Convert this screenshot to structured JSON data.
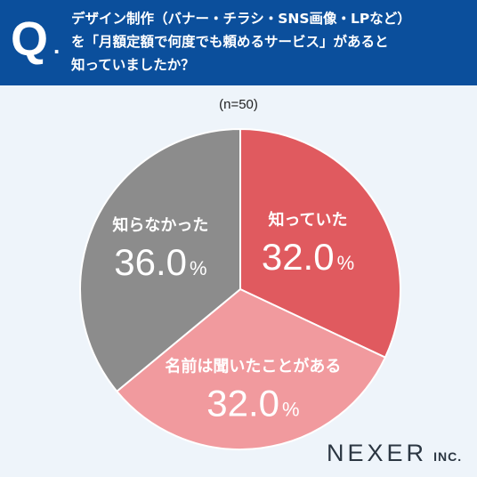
{
  "header": {
    "q_mark": "Q",
    "q_dot": ".",
    "question": "デザイン制作（バナー・チラシ・SNS画像・LPなど）\nを「月額定額で何度でも頼めるサービス」があると\n知っていましたか？",
    "background_color": "#0b4f9c"
  },
  "sample": "(n=50)",
  "chart_data": {
    "type": "pie",
    "title": "",
    "slices": [
      {
        "label": "知っていた",
        "value": 32.0,
        "display": "32.0",
        "color": "#e05a5f"
      },
      {
        "label": "名前は聞いたことがある",
        "value": 32.0,
        "display": "32.0",
        "color": "#f19a9e"
      },
      {
        "label": "知らなかった",
        "value": 36.0,
        "display": "36.0",
        "color": "#8c8c8c"
      }
    ],
    "unit": "%",
    "start": "12 o'clock",
    "direction": "clockwise"
  },
  "brand": {
    "main": "NEXER",
    "sub": "INC."
  }
}
